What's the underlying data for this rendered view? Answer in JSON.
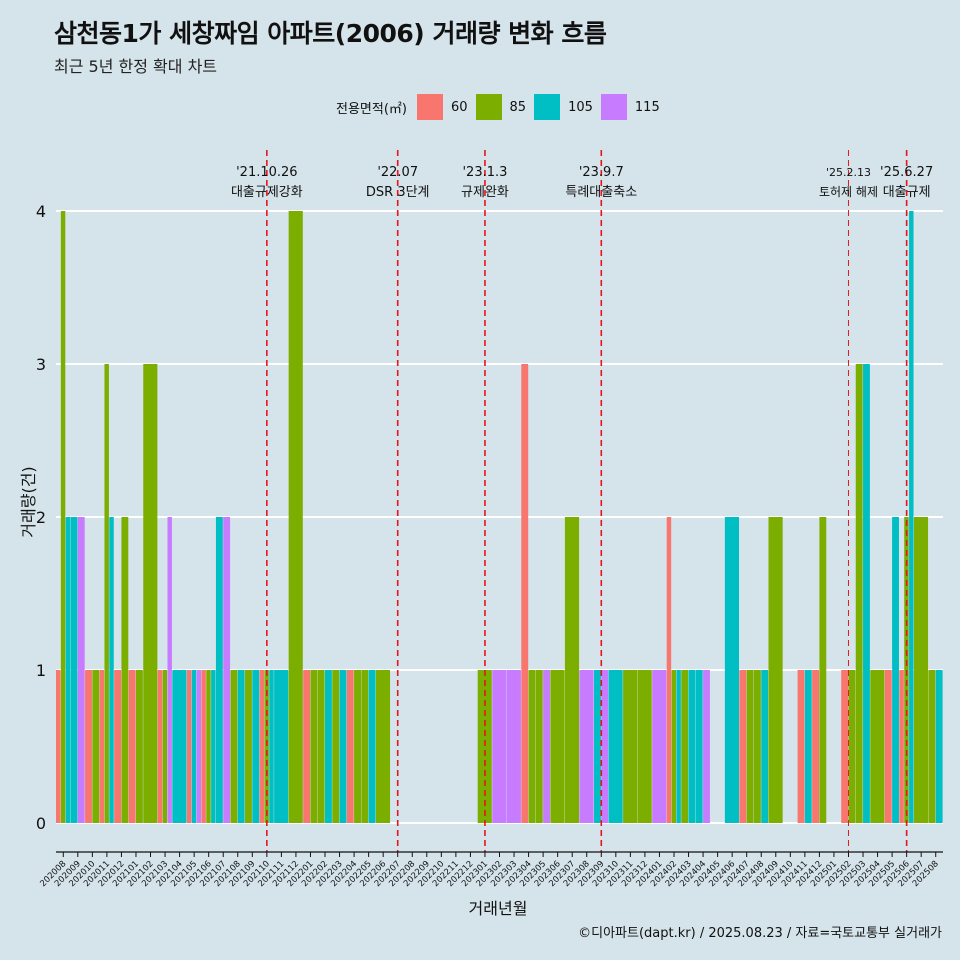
{
  "title": "삼천동1가 세창짜임 아파트(2006) 거래량 변화 흐름",
  "subtitle": "최근 5년 한정 확대 차트",
  "caption": "©디아파트(dapt.kr) / 2025.08.23 / 자료=국토교통부 실거래가",
  "legend": {
    "title": "전용면적(㎡)",
    "items": [
      {
        "label": "60",
        "color": "#f8766d"
      },
      {
        "label": "85",
        "color": "#7cae00"
      },
      {
        "label": "105",
        "color": "#00bfc4"
      },
      {
        "label": "115",
        "color": "#c77cff"
      }
    ]
  },
  "chart_data": {
    "type": "bar",
    "xlabel": "거래년월",
    "ylabel": "거래량(건)",
    "ylim": [
      0,
      4
    ],
    "yticks": [
      0,
      1,
      2,
      3,
      4
    ],
    "grid": true,
    "categories": [
      "202008",
      "202009",
      "202010",
      "202011",
      "202012",
      "202101",
      "202102",
      "202103",
      "202104",
      "202105",
      "202106",
      "202107",
      "202108",
      "202109",
      "202110",
      "202111",
      "202112",
      "202201",
      "202202",
      "202203",
      "202204",
      "202205",
      "202206",
      "202207",
      "202208",
      "202209",
      "202210",
      "202211",
      "202212",
      "202301",
      "202302",
      "202303",
      "202304",
      "202305",
      "202306",
      "202307",
      "202308",
      "202309",
      "202310",
      "202311",
      "202312",
      "202401",
      "202402",
      "202403",
      "202404",
      "202405",
      "202406",
      "202407",
      "202408",
      "202409",
      "202410",
      "202411",
      "202412",
      "202501",
      "202502",
      "202503",
      "202504",
      "202505",
      "202506",
      "202507",
      "202508"
    ],
    "series": [
      {
        "name": "60",
        "values": [
          1,
          0,
          1,
          1,
          1,
          1,
          0,
          1,
          0,
          1,
          1,
          0,
          0,
          0,
          1,
          0,
          0,
          1,
          0,
          0,
          1,
          0,
          0,
          0,
          0,
          0,
          0,
          0,
          0,
          0,
          0,
          0,
          3,
          0,
          0,
          0,
          0,
          0,
          0,
          0,
          0,
          0,
          2,
          0,
          0,
          0,
          0,
          1,
          0,
          0,
          0,
          1,
          1,
          0,
          1,
          0,
          0,
          1,
          1,
          0,
          0
        ]
      },
      {
        "name": "85",
        "values": [
          4,
          0,
          1,
          3,
          2,
          1,
          3,
          1,
          0,
          0,
          1,
          0,
          1,
          1,
          1,
          0,
          4,
          1,
          1,
          1,
          1,
          1,
          1,
          0,
          0,
          0,
          0,
          0,
          0,
          1,
          0,
          0,
          1,
          1,
          1,
          2,
          0,
          0,
          0,
          1,
          1,
          0,
          1,
          1,
          0,
          0,
          0,
          1,
          1,
          2,
          0,
          0,
          2,
          0,
          1,
          3,
          1,
          0,
          2,
          2,
          1
        ]
      },
      {
        "name": "105",
        "values": [
          2,
          2,
          0,
          2,
          0,
          0,
          0,
          0,
          1,
          1,
          1,
          2,
          1,
          1,
          1,
          1,
          0,
          0,
          1,
          1,
          0,
          1,
          0,
          0,
          0,
          0,
          0,
          0,
          0,
          0,
          0,
          0,
          0,
          0,
          0,
          0,
          0,
          1,
          1,
          0,
          0,
          0,
          1,
          1,
          1,
          0,
          2,
          0,
          1,
          0,
          0,
          1,
          0,
          0,
          0,
          3,
          0,
          2,
          4,
          0,
          1
        ]
      },
      {
        "name": "115",
        "values": [
          0,
          2,
          0,
          0,
          0,
          0,
          0,
          2,
          0,
          1,
          0,
          2,
          0,
          0,
          0,
          0,
          0,
          0,
          0,
          0,
          0,
          0,
          0,
          0,
          0,
          0,
          0,
          0,
          0,
          0,
          1,
          1,
          0,
          1,
          0,
          0,
          1,
          1,
          0,
          0,
          0,
          1,
          0,
          0,
          1,
          0,
          0,
          0,
          0,
          0,
          0,
          0,
          0,
          0,
          0,
          0,
          0,
          0,
          0,
          0,
          0
        ]
      }
    ],
    "annotations": [
      {
        "at": "202110",
        "date": "'21.10.26",
        "label": "대출규제강화",
        "style": "major"
      },
      {
        "at": "202207",
        "date": "'22.07",
        "label": "DSR 3단계",
        "style": "major"
      },
      {
        "at": "202301",
        "date": "'23.1.3",
        "label": "규제완화",
        "style": "major"
      },
      {
        "at": "202309",
        "date": "'23.9.7",
        "label": "특례대출축소",
        "style": "major"
      },
      {
        "at": "202502",
        "date": "'25.2.13",
        "label": "토허제 해제",
        "style": "minor"
      },
      {
        "at": "202506",
        "date": "'25.6.27",
        "label": "대출규제",
        "style": "major"
      }
    ]
  }
}
